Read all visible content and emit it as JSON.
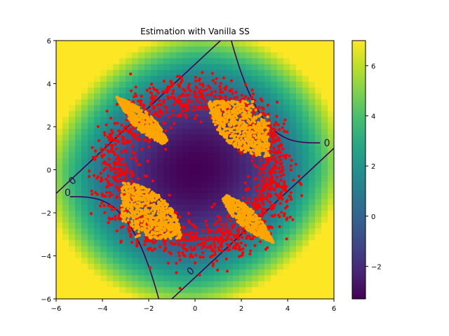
{
  "chart_data": {
    "type": "scatter",
    "title": "Estimation with Vanilla SS",
    "xlabel": "",
    "ylabel": "",
    "xlim": [
      -6,
      6
    ],
    "ylim": [
      -6,
      6
    ],
    "x_ticks": [
      -6,
      -4,
      -2,
      0,
      2,
      4,
      6
    ],
    "y_ticks": [
      -6,
      -4,
      -2,
      0,
      2,
      4,
      6
    ],
    "x_tick_labels": [
      "−6",
      "−4",
      "−2",
      "0",
      "2",
      "4",
      "6"
    ],
    "y_tick_labels": [
      "−6",
      "−4",
      "−2",
      "0",
      "2",
      "4",
      "6"
    ],
    "background_field": {
      "type": "heatmap",
      "colormap": "viridis",
      "vmin": -3.3,
      "vmax": 7.0
    },
    "colorbar": {
      "ticks": [
        -2,
        0,
        2,
        4,
        6
      ],
      "tick_labels": [
        "−2",
        "0",
        "2",
        "4",
        "6"
      ],
      "range": [
        -3.3,
        7.0
      ]
    },
    "contours": [
      {
        "level": 0,
        "label": "0",
        "color": "#440154"
      }
    ],
    "series": [
      {
        "color": "#ff0000",
        "marker": "dot",
        "region": "annulus radius 2.5–4.8, all four quadrants"
      },
      {
        "color": "#ffa500",
        "marker": "dot",
        "region": "annulus radius 2.2–4.3, four lobes"
      }
    ]
  }
}
